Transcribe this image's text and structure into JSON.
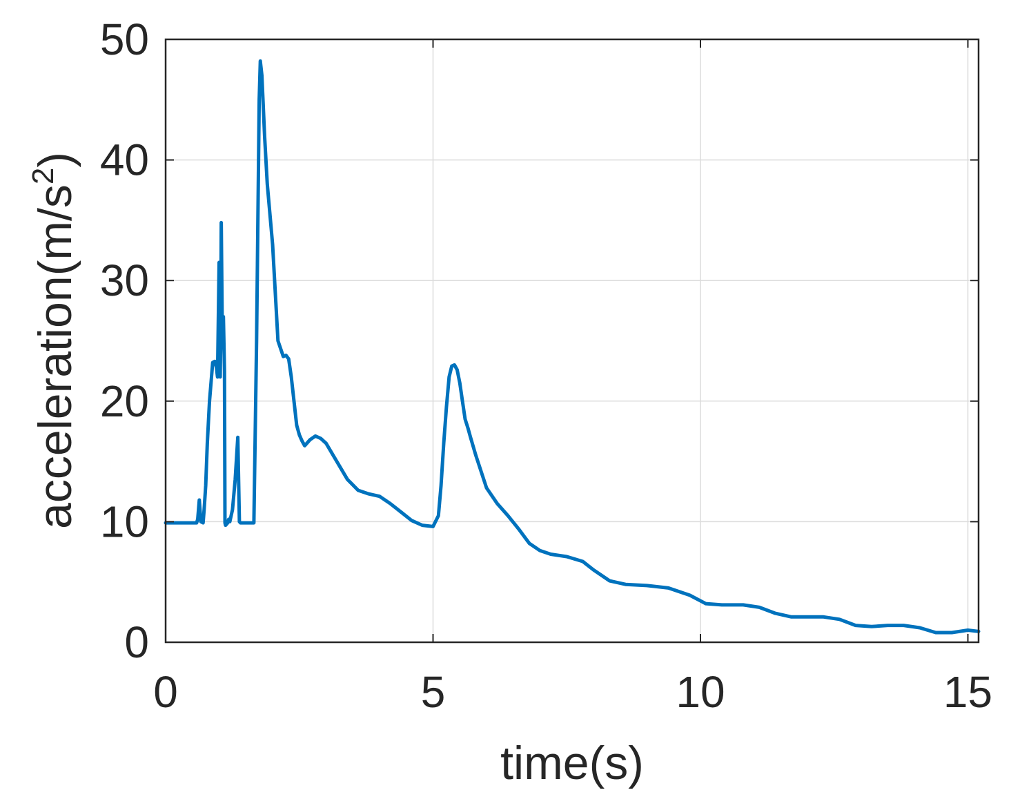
{
  "chart_data": {
    "type": "line",
    "title": "",
    "xlabel": "time(s)",
    "ylabel_base": "acceleration(m/s",
    "ylabel_sup": "2",
    "ylabel_close": ")",
    "xlim": [
      0,
      15.2
    ],
    "ylim": [
      0,
      50
    ],
    "xticks": [
      0,
      5,
      10,
      15
    ],
    "yticks": [
      0,
      10,
      20,
      30,
      40,
      50
    ],
    "grid": true,
    "line_color": "#0072BD",
    "series": [
      {
        "x": [
          0,
          0.58,
          0.6,
          0.63,
          0.66,
          0.7,
          0.72,
          0.75,
          0.78,
          0.82,
          0.88,
          0.92,
          0.95,
          0.97,
          1.0,
          1.01,
          1.02,
          1.03,
          1.04,
          1.05,
          1.06,
          1.08,
          1.1,
          1.11,
          1.12,
          1.14,
          1.16,
          1.18,
          1.2,
          1.25,
          1.3,
          1.35,
          1.38,
          1.4,
          1.42,
          1.45,
          1.55,
          1.65,
          1.7,
          1.75,
          1.77,
          1.8,
          1.85,
          1.9,
          2.0,
          2.1,
          2.2,
          2.25,
          2.3,
          2.35,
          2.4,
          2.45,
          2.5,
          2.55,
          2.6,
          2.7,
          2.8,
          2.9,
          3.0,
          3.2,
          3.4,
          3.6,
          3.8,
          4.0,
          4.2,
          4.4,
          4.6,
          4.8,
          5.0,
          5.1,
          5.15,
          5.2,
          5.25,
          5.3,
          5.35,
          5.4,
          5.45,
          5.5,
          5.55,
          5.6,
          5.65,
          5.7,
          5.8,
          6.0,
          6.2,
          6.4,
          6.6,
          6.8,
          7.0,
          7.2,
          7.5,
          7.8,
          8.0,
          8.3,
          8.6,
          9.0,
          9.4,
          9.8,
          10.1,
          10.4,
          10.8,
          11.1,
          11.4,
          11.7,
          12.0,
          12.3,
          12.6,
          12.9,
          13.2,
          13.5,
          13.8,
          14.1,
          14.4,
          14.7,
          15.0,
          15.2
        ],
        "y": [
          9.9,
          9.9,
          10.2,
          11.8,
          10.0,
          9.9,
          11.0,
          13.0,
          16.5,
          20.0,
          23.2,
          23.3,
          22.8,
          22.0,
          31.5,
          28.0,
          22.0,
          25.0,
          34.8,
          30.0,
          26.0,
          27.0,
          22.5,
          9.9,
          9.7,
          9.8,
          9.9,
          10.2,
          10.0,
          11.0,
          13.5,
          17.0,
          10.0,
          9.9,
          9.9,
          9.9,
          9.9,
          9.9,
          25.0,
          45.0,
          48.2,
          47.0,
          42.0,
          38.0,
          33.0,
          25.0,
          23.7,
          23.8,
          23.5,
          22.0,
          20.0,
          18.0,
          17.2,
          16.7,
          16.3,
          16.8,
          17.1,
          16.9,
          16.5,
          15.0,
          13.5,
          12.6,
          12.3,
          12.1,
          11.5,
          10.8,
          10.1,
          9.7,
          9.6,
          10.5,
          13.0,
          16.5,
          19.5,
          22.0,
          22.9,
          23.0,
          22.6,
          21.5,
          20.0,
          18.5,
          17.8,
          17.0,
          15.5,
          12.8,
          11.5,
          10.5,
          9.4,
          8.2,
          7.6,
          7.3,
          7.1,
          6.7,
          6.0,
          5.1,
          4.8,
          4.7,
          4.5,
          3.9,
          3.2,
          3.1,
          3.1,
          2.9,
          2.4,
          2.1,
          2.1,
          2.1,
          1.9,
          1.4,
          1.3,
          1.4,
          1.4,
          1.2,
          0.8,
          0.8,
          1.0,
          0.9
        ]
      }
    ]
  }
}
